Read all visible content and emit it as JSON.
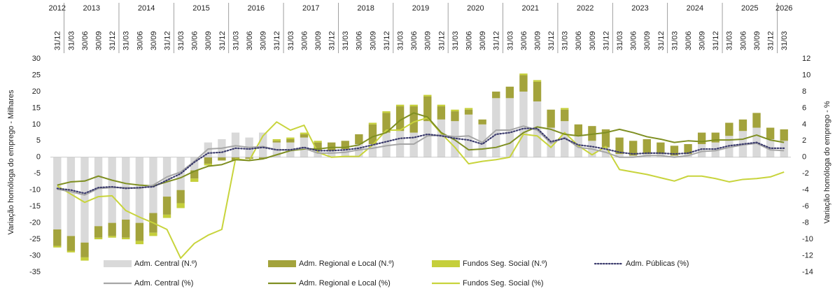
{
  "chart_data": {
    "type": "bar",
    "ylabel": "Variação homóloga do emprego - Milhares",
    "y2label": "Variação homóloga do emprego - %",
    "years": [
      "2012",
      "2013",
      "2014",
      "2015",
      "2016",
      "2017",
      "2018",
      "2019",
      "2020",
      "2021",
      "2022",
      "2023",
      "2024",
      "2025",
      "2026"
    ],
    "categories": [
      "31/12",
      "31/03",
      "30/06",
      "30/09",
      "31/12",
      "31/03",
      "30/06",
      "30/09",
      "31/12",
      "31/03",
      "30/06",
      "30/09",
      "31/12",
      "31/03",
      "30/06",
      "30/09",
      "31/12",
      "31/03",
      "30/06",
      "30/09",
      "31/12",
      "31/03",
      "30/06",
      "30/09",
      "31/12",
      "31/03",
      "30/06",
      "30/09",
      "31/12",
      "31/03",
      "30/06",
      "30/09",
      "31/12",
      "31/03",
      "30/06",
      "30/09",
      "31/12",
      "31/03",
      "30/06",
      "30/09",
      "31/12",
      "31/03",
      "30/06",
      "30/09",
      "31/12",
      "31/03",
      "30/06",
      "30/09",
      "31/12",
      "31/03",
      "30/06",
      "30/09",
      "31/12",
      "31/03"
    ],
    "ylim": [
      -35,
      30
    ],
    "yticks": [
      -35,
      -30,
      -25,
      -20,
      -15,
      -10,
      -5,
      0,
      5,
      10,
      15,
      20,
      25,
      30
    ],
    "y2lim": [
      -14,
      12
    ],
    "y2ticks": [
      -14,
      -12,
      -10,
      -8,
      -6,
      -4,
      -2,
      0,
      2,
      4,
      6,
      8,
      10,
      12
    ],
    "series": [
      {
        "name": "Adm. Central (N.º)",
        "type": "bar",
        "color": "#d9d9d9",
        "values": [
          -22,
          -24,
          -26,
          -21,
          -20,
          -19,
          -20,
          -17,
          -12,
          -10,
          -4,
          4.5,
          5.5,
          7.5,
          6,
          7.5,
          4.5,
          4.5,
          6,
          2,
          2,
          2.5,
          4,
          4,
          7.5,
          8,
          7.5,
          11,
          11.5,
          11,
          13,
          10,
          18,
          18,
          20,
          17,
          9,
          11,
          6.5,
          5,
          3,
          1,
          0.5,
          1,
          1,
          0.5,
          1,
          4,
          4.5,
          6.5,
          8,
          9,
          5.5,
          5
        ]
      },
      {
        "name": "Adm. Regional e Local (N.º)",
        "type": "bar",
        "color": "#a3a33c",
        "values": [
          -5,
          -4.5,
          -4.5,
          -3.5,
          -4,
          -5.5,
          -5.5,
          -6,
          -5.5,
          -4,
          -2.5,
          -2,
          -1,
          -1,
          -0.5,
          -0.5,
          0.5,
          1,
          1,
          2.5,
          2.5,
          2.5,
          3,
          6,
          6,
          7.5,
          8,
          7.5,
          4,
          3,
          1.5,
          1.5,
          2,
          3.5,
          5,
          6,
          5.5,
          3.5,
          3.5,
          4.5,
          5.5,
          5,
          4.5,
          4.5,
          3.5,
          3,
          3,
          3.5,
          3,
          4,
          3.5,
          4.5,
          3.5,
          3.5
        ]
      },
      {
        "name": "Fundos Seg. Social (N.º)",
        "type": "bar",
        "color": "#c5cf3b",
        "values": [
          -0.5,
          -0.5,
          -1,
          -0.5,
          -0.5,
          -0.5,
          -1,
          -1,
          -1,
          -1.5,
          -1,
          -0.5,
          0,
          0,
          0,
          0,
          0.5,
          0.5,
          0.5,
          0.5,
          0,
          0,
          0,
          0.5,
          0.5,
          0.5,
          0.5,
          0.5,
          0.5,
          0.5,
          0.5,
          0,
          0,
          0,
          0.5,
          0.5,
          0,
          0.5,
          0,
          0,
          0,
          0,
          0,
          0,
          0,
          0,
          0,
          0,
          0,
          0,
          0,
          0,
          0,
          0
        ]
      },
      {
        "name": "Adm. Públicas (%)",
        "type": "line",
        "axis": "y2",
        "dash": true,
        "color": "#3d3d6e",
        "values": [
          -3.8,
          -4.0,
          -4.4,
          -3.7,
          -3.6,
          -3.8,
          -3.7,
          -3.6,
          -2.8,
          -2.0,
          -0.6,
          0.5,
          0.6,
          1.1,
          1.0,
          1.2,
          0.9,
          0.9,
          1.2,
          0.8,
          0.8,
          0.9,
          1.1,
          1.5,
          1.9,
          2.3,
          2.4,
          2.8,
          2.6,
          2.3,
          2.1,
          1.6,
          2.8,
          3.0,
          3.5,
          3.5,
          1.9,
          2.3,
          1.5,
          1.3,
          1.0,
          0.6,
          0.4,
          0.5,
          0.5,
          0.4,
          0.5,
          1.0,
          1.0,
          1.4,
          1.6,
          1.8,
          1.1,
          1.1
        ]
      },
      {
        "name": "Adm. Central (%)",
        "type": "line",
        "axis": "y2",
        "color": "#a6a6a6",
        "values": [
          -3.9,
          -4.2,
          -4.6,
          -3.8,
          -3.7,
          -3.7,
          -3.8,
          -3.4,
          -2.4,
          -1.8,
          -0.5,
          1.0,
          1.1,
          1.4,
          1.2,
          1.3,
          0.9,
          0.9,
          1.1,
          0.5,
          0.5,
          0.6,
          0.9,
          1.1,
          1.4,
          1.6,
          1.6,
          2.6,
          2.7,
          2.5,
          2.6,
          1.8,
          3.3,
          3.3,
          3.8,
          3.3,
          1.7,
          2.4,
          1.2,
          1.0,
          0.6,
          0,
          0,
          0.2,
          0.2,
          0,
          0.2,
          0.7,
          0.8,
          1.2,
          1.5,
          1.7,
          0.9,
          0.8
        ]
      },
      {
        "name": "Adm. Regional e Local (%)",
        "type": "line",
        "axis": "y2",
        "color": "#7f8f22",
        "values": [
          -3.4,
          -3.0,
          -2.9,
          -2.3,
          -2.8,
          -3.2,
          -3.4,
          -3.5,
          -3.0,
          -2.5,
          -1.7,
          -1.1,
          -0.9,
          -0.3,
          -0.4,
          -0.2,
          0.3,
          0.8,
          1.0,
          1.0,
          1.2,
          1.2,
          1.5,
          2.5,
          3.0,
          4.5,
          5.4,
          4.9,
          3.0,
          2.1,
          0.9,
          1.0,
          1.2,
          1.7,
          3.0,
          3.7,
          3.4,
          2.8,
          2.6,
          2.8,
          3.0,
          3.4,
          3.0,
          2.5,
          2.2,
          1.8,
          2.0,
          1.9,
          2.1,
          2.1,
          2.2,
          2.7,
          2.1,
          1.8
        ]
      },
      {
        "name": "Fundos Seg. Social (%)",
        "type": "line",
        "axis": "y2",
        "color": "#c8d43c",
        "values": [
          -3.5,
          -4.5,
          -5.5,
          -4.8,
          -4.7,
          -6.5,
          -7.3,
          -8.0,
          -8.8,
          -12.3,
          -10.5,
          -9.5,
          -8.8,
          -0.2,
          -0.4,
          2.6,
          4.3,
          3.3,
          3.9,
          0.6,
          0,
          0.1,
          0.1,
          1.5,
          3.3,
          3.3,
          4.3,
          4.8,
          2.9,
          1.2,
          -0.8,
          -0.5,
          -0.3,
          0,
          2.8,
          2.6,
          1.2,
          3.0,
          1.4,
          0.3,
          1.3,
          -1.5,
          -1.8,
          -2.1,
          -2.5,
          -2.9,
          -2.3,
          -2.3,
          -2.6,
          -3.0,
          -2.7,
          -2.6,
          -2.4,
          -1.8
        ]
      }
    ]
  }
}
